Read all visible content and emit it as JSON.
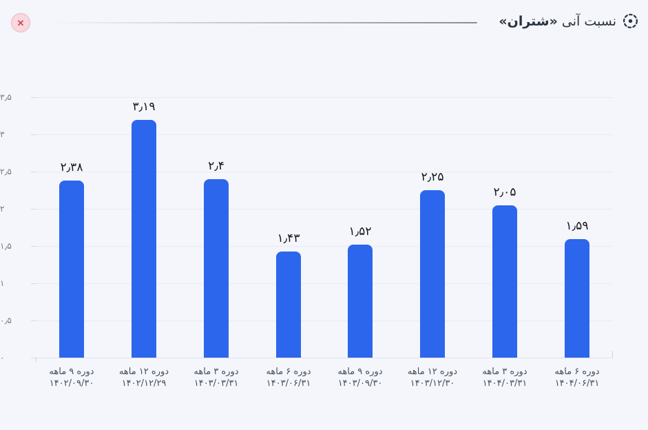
{
  "header": {
    "title_prefix": "نسبت آنی",
    "title_symbol": "«شتران»"
  },
  "close_button": {
    "symbol": "✕"
  },
  "chart_data": {
    "type": "bar",
    "title": "نسبت آنی «شتران»",
    "categories": [
      {
        "period": "دوره ۹ ماهه",
        "date": "۱۴۰۲/۰۹/۳۰"
      },
      {
        "period": "دوره ۱۲ ماهه",
        "date": "۱۴۰۲/۱۲/۲۹"
      },
      {
        "period": "دوره ۳ ماهه",
        "date": "۱۴۰۳/۰۳/۳۱"
      },
      {
        "period": "دوره ۶ ماهه",
        "date": "۱۴۰۳/۰۶/۳۱"
      },
      {
        "period": "دوره ۹ ماهه",
        "date": "۱۴۰۳/۰۹/۳۰"
      },
      {
        "period": "دوره ۱۲ ماهه",
        "date": "۱۴۰۳/۱۲/۳۰"
      },
      {
        "period": "دوره ۳ ماهه",
        "date": "۱۴۰۴/۰۳/۳۱"
      },
      {
        "period": "دوره ۶ ماهه",
        "date": "۱۴۰۴/۰۶/۳۱"
      }
    ],
    "values": [
      2.38,
      3.19,
      2.4,
      1.43,
      1.52,
      2.25,
      2.05,
      1.59
    ],
    "value_labels": [
      "۲٫۳۸",
      "۳٫۱۹",
      "۲٫۴",
      "۱٫۴۳",
      "۱٫۵۲",
      "۲٫۲۵",
      "۲٫۰۵",
      "۱٫۵۹"
    ],
    "y_ticks": [
      {
        "value": 0,
        "label": "۰"
      },
      {
        "value": 0.5,
        "label": "۰٫۵"
      },
      {
        "value": 1,
        "label": "۱"
      },
      {
        "value": 1.5,
        "label": "۱٫۵"
      },
      {
        "value": 2,
        "label": "۲"
      },
      {
        "value": 2.5,
        "label": "۲٫۵"
      },
      {
        "value": 3,
        "label": "۳"
      },
      {
        "value": 3.5,
        "label": "۳٫۵"
      }
    ],
    "ylim": [
      0,
      3.5
    ],
    "xlabel": "",
    "ylabel": "",
    "grid": true,
    "legend": false,
    "bar_color": "#2b66ed",
    "value_color": "#14171d",
    "background_color": "#f4f6fb"
  }
}
